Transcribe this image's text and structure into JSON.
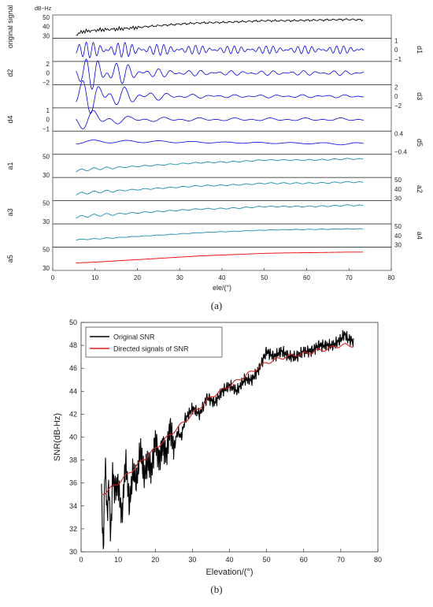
{
  "caption_a": "(a)",
  "caption_b": "(b)",
  "chart_data": [
    {
      "type": "line",
      "unit_label": "dB−Hz",
      "xlabel": "ele/(°)",
      "xlim": [
        0,
        80
      ],
      "xticks": [
        0,
        10,
        20,
        30,
        40,
        50,
        60,
        70,
        80
      ],
      "series": [
        {
          "name": "original signal",
          "side": "left",
          "yticks": [
            "30",
            "40",
            "50"
          ],
          "ylim": [
            28,
            52
          ],
          "color": "#000000",
          "x": [
            5.5,
            7,
            9,
            11,
            13,
            15,
            18,
            22,
            26,
            30,
            35,
            40,
            45,
            50,
            55,
            60,
            65,
            70,
            73.5
          ],
          "values": [
            30,
            34,
            35,
            36,
            36.5,
            37,
            38,
            40,
            41.5,
            43,
            44.5,
            45,
            46,
            47,
            47,
            47.5,
            48,
            48.5,
            48
          ]
        },
        {
          "name": "d1",
          "side": "right",
          "yticks": [
            "−1",
            "0",
            "1"
          ],
          "ylim": [
            -1.4,
            1.4
          ],
          "color": "#0000ee",
          "x": [
            5.5,
            10,
            15,
            20,
            25,
            30,
            40,
            50,
            60,
            70,
            73.5
          ],
          "values": [
            1.0,
            1.0,
            1.0,
            0.8,
            0.7,
            0.6,
            0.5,
            0.5,
            0.5,
            0.5,
            0.5
          ]
        },
        {
          "name": "d2",
          "side": "left",
          "yticks": [
            "−2",
            "0",
            "2"
          ],
          "ylim": [
            -2.6,
            2.6
          ],
          "color": "#0000ee",
          "x": [
            5.5,
            10,
            14,
            20,
            30,
            40,
            50,
            60,
            70,
            73.5
          ],
          "values": [
            1.2,
            2.3,
            1.8,
            0.7,
            0.4,
            0.3,
            0.3,
            0.3,
            0.3,
            0.3
          ]
        },
        {
          "name": "d3",
          "side": "right",
          "yticks": [
            "−2",
            "0",
            "2"
          ],
          "ylim": [
            -2.6,
            2.6
          ],
          "color": "#0000ee",
          "x": [
            5.5,
            8,
            12,
            18,
            25,
            30,
            40,
            50,
            60,
            70,
            73.5
          ],
          "values": [
            2.2,
            2.3,
            1.8,
            1.0,
            0.5,
            0.3,
            0.2,
            0.2,
            0.2,
            0.2,
            0.2
          ]
        },
        {
          "name": "d4",
          "side": "left",
          "yticks": [
            "−1",
            "0",
            "1"
          ],
          "ylim": [
            -1.5,
            1.5
          ],
          "color": "#0000ee",
          "x": [
            5.5,
            8,
            12,
            18,
            25,
            30,
            40,
            50,
            60,
            70,
            73.5
          ],
          "values": [
            1.3,
            1.4,
            1.0,
            0.4,
            0.3,
            0.25,
            0.2,
            0.2,
            0.2,
            0.2,
            0.2
          ]
        },
        {
          "name": "d5",
          "side": "right",
          "yticks": [
            "−0.4",
            "0.4"
          ],
          "ylim": [
            -0.5,
            0.5
          ],
          "color": "#0000ee",
          "x": [
            5.5,
            8,
            10,
            15,
            20,
            30,
            40,
            50,
            60,
            70,
            73.5
          ],
          "values": [
            0.45,
            0.45,
            0.4,
            0.3,
            0.3,
            0.2,
            0.15,
            0.15,
            0.15,
            0.3,
            0.3
          ]
        },
        {
          "name": "a1",
          "side": "left",
          "yticks": [
            "30",
            "50"
          ],
          "ylim": [
            28,
            52
          ],
          "color": "#1a8cb0",
          "x": [
            5.5,
            7,
            10,
            15,
            20,
            25,
            30,
            35,
            40,
            45,
            50,
            55,
            60,
            65,
            70,
            73.5
          ],
          "values": [
            34,
            35,
            36.5,
            38,
            39.5,
            41,
            42.5,
            44,
            44.5,
            45.5,
            47,
            47,
            47,
            47.5,
            48.5,
            48
          ]
        },
        {
          "name": "a2",
          "side": "right",
          "yticks": [
            "30",
            "40",
            "50"
          ],
          "ylim": [
            28,
            52
          ],
          "color": "#1a8cb0",
          "x": [
            5.5,
            7,
            10,
            15,
            20,
            25,
            30,
            35,
            40,
            45,
            50,
            55,
            60,
            65,
            70,
            73.5
          ],
          "values": [
            34,
            35,
            36.5,
            38,
            39.5,
            41,
            42.5,
            44,
            44.5,
            45.5,
            47,
            47,
            47,
            47.5,
            48.5,
            48
          ]
        },
        {
          "name": "a3",
          "side": "left",
          "yticks": [
            "30",
            "50"
          ],
          "ylim": [
            28,
            52
          ],
          "color": "#1a8cb0",
          "x": [
            5.5,
            7,
            10,
            15,
            20,
            25,
            30,
            35,
            40,
            45,
            50,
            55,
            60,
            65,
            70,
            73.5
          ],
          "values": [
            34,
            35,
            36.5,
            38,
            39.5,
            41,
            42.5,
            44,
            44.5,
            45.5,
            47,
            47,
            47,
            47.5,
            48.5,
            48
          ]
        },
        {
          "name": "a4",
          "side": "right",
          "yticks": [
            "30",
            "40",
            "50"
          ],
          "ylim": [
            28,
            52
          ],
          "color": "#1a8cb0",
          "x": [
            5.5,
            10,
            15,
            20,
            25,
            30,
            35,
            40,
            45,
            50,
            55,
            60,
            65,
            70,
            73.5
          ],
          "values": [
            35,
            36,
            37.5,
            39,
            40.5,
            42,
            43.5,
            44.5,
            45.5,
            46.5,
            47,
            47.3,
            47.6,
            48,
            48
          ]
        },
        {
          "name": "a5",
          "side": "left",
          "yticks": [
            "30",
            "50"
          ],
          "ylim": [
            28,
            52
          ],
          "color": "#ee0000",
          "x": [
            5.5,
            10,
            15,
            20,
            25,
            30,
            35,
            40,
            45,
            50,
            55,
            60,
            65,
            70,
            73.5
          ],
          "values": [
            35,
            36,
            37.5,
            39,
            40.5,
            42,
            43.5,
            44.5,
            45.5,
            46.5,
            47,
            47.3,
            47.6,
            48,
            48
          ]
        }
      ]
    },
    {
      "type": "line",
      "xlabel": "Elevation/(°)",
      "ylabel": "SNR(dB-Hz)",
      "xlim": [
        0,
        80
      ],
      "ylim": [
        30,
        50
      ],
      "xticks": [
        0,
        10,
        20,
        30,
        40,
        50,
        60,
        70,
        80
      ],
      "yticks": [
        30,
        32,
        34,
        36,
        38,
        40,
        42,
        44,
        46,
        48,
        50
      ],
      "grid": false,
      "legend": "top-left",
      "series": [
        {
          "name": "Original SNR",
          "color": "#000000",
          "x": [
            5.5,
            6,
            6.5,
            7,
            7.5,
            8,
            8.5,
            9,
            10,
            11,
            12,
            13,
            14,
            15,
            16,
            17,
            18,
            19,
            20,
            21,
            22,
            23,
            24,
            25,
            26,
            27,
            28,
            29,
            30,
            32,
            34,
            36,
            38,
            40,
            42,
            44,
            46,
            48,
            50,
            52,
            54,
            56,
            58,
            60,
            62,
            64,
            66,
            68,
            70,
            71,
            72,
            73,
            73.5
          ],
          "values": [
            35,
            30,
            38.5,
            33,
            36,
            31,
            37,
            35.5,
            36,
            33,
            38,
            34,
            37,
            36,
            39,
            36.5,
            38,
            37,
            40,
            38,
            39.5,
            38.5,
            41,
            39,
            40.5,
            40,
            41.5,
            42,
            42.5,
            42,
            43.5,
            43,
            44,
            44.5,
            44,
            45,
            45,
            46,
            47.5,
            47,
            47.5,
            47,
            47,
            47.5,
            47.5,
            48,
            48,
            48,
            48.5,
            49,
            48.5,
            48.5,
            48
          ]
        },
        {
          "name": "Directed signals of SNR",
          "color": "#d62020",
          "x": [
            5.5,
            10,
            15,
            20,
            25,
            30,
            35,
            40,
            45,
            50,
            55,
            60,
            65,
            70,
            73.5
          ],
          "values": [
            35,
            36,
            37.5,
            39,
            40.5,
            42,
            43.5,
            44.5,
            45.5,
            46.5,
            47,
            47.3,
            47.6,
            48,
            48
          ]
        }
      ]
    }
  ]
}
